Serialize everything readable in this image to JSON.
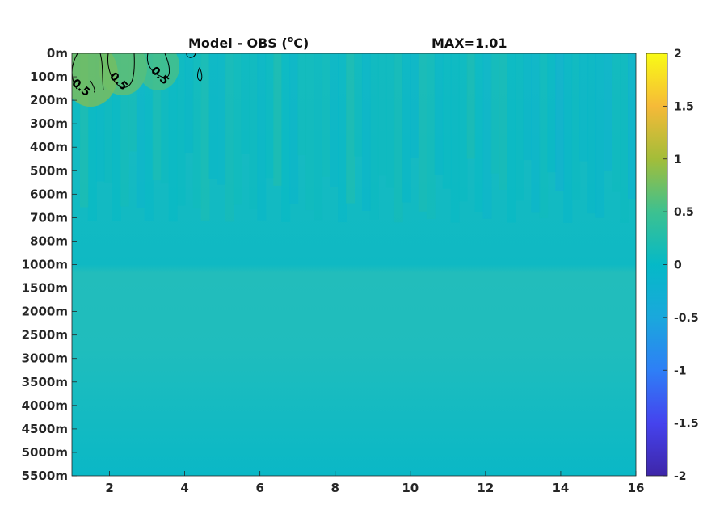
{
  "chart_data": {
    "type": "heatmap",
    "title": "Model - OBS (",
    "title_sup": "o",
    "title_unit": "C)",
    "max_label": "MAX=1.01",
    "x_ticks": [
      2,
      4,
      6,
      8,
      10,
      12,
      14,
      16
    ],
    "xlim": [
      1,
      16
    ],
    "y_tick_labels": [
      "0m",
      "100m",
      "200m",
      "300m",
      "400m",
      "500m",
      "600m",
      "700m",
      "800m",
      "1000m",
      "1500m",
      "2000m",
      "2500m",
      "3000m",
      "3500m",
      "4000m",
      "4500m",
      "5000m",
      "5500m"
    ],
    "colorbar": {
      "ticks": [
        2,
        1.5,
        1,
        0.5,
        0,
        -0.5,
        -1,
        -1.5,
        -2
      ],
      "range": [
        -2,
        2
      ],
      "colormap": "parula"
    },
    "contour": {
      "level": 0.5,
      "labels": [
        "0.5",
        "0.5",
        "0.5"
      ]
    },
    "upper_band_mean": 0.05,
    "lower_band_mean": 0.2,
    "hotspot_values": [
      0.9,
      0.75,
      0.6
    ]
  }
}
